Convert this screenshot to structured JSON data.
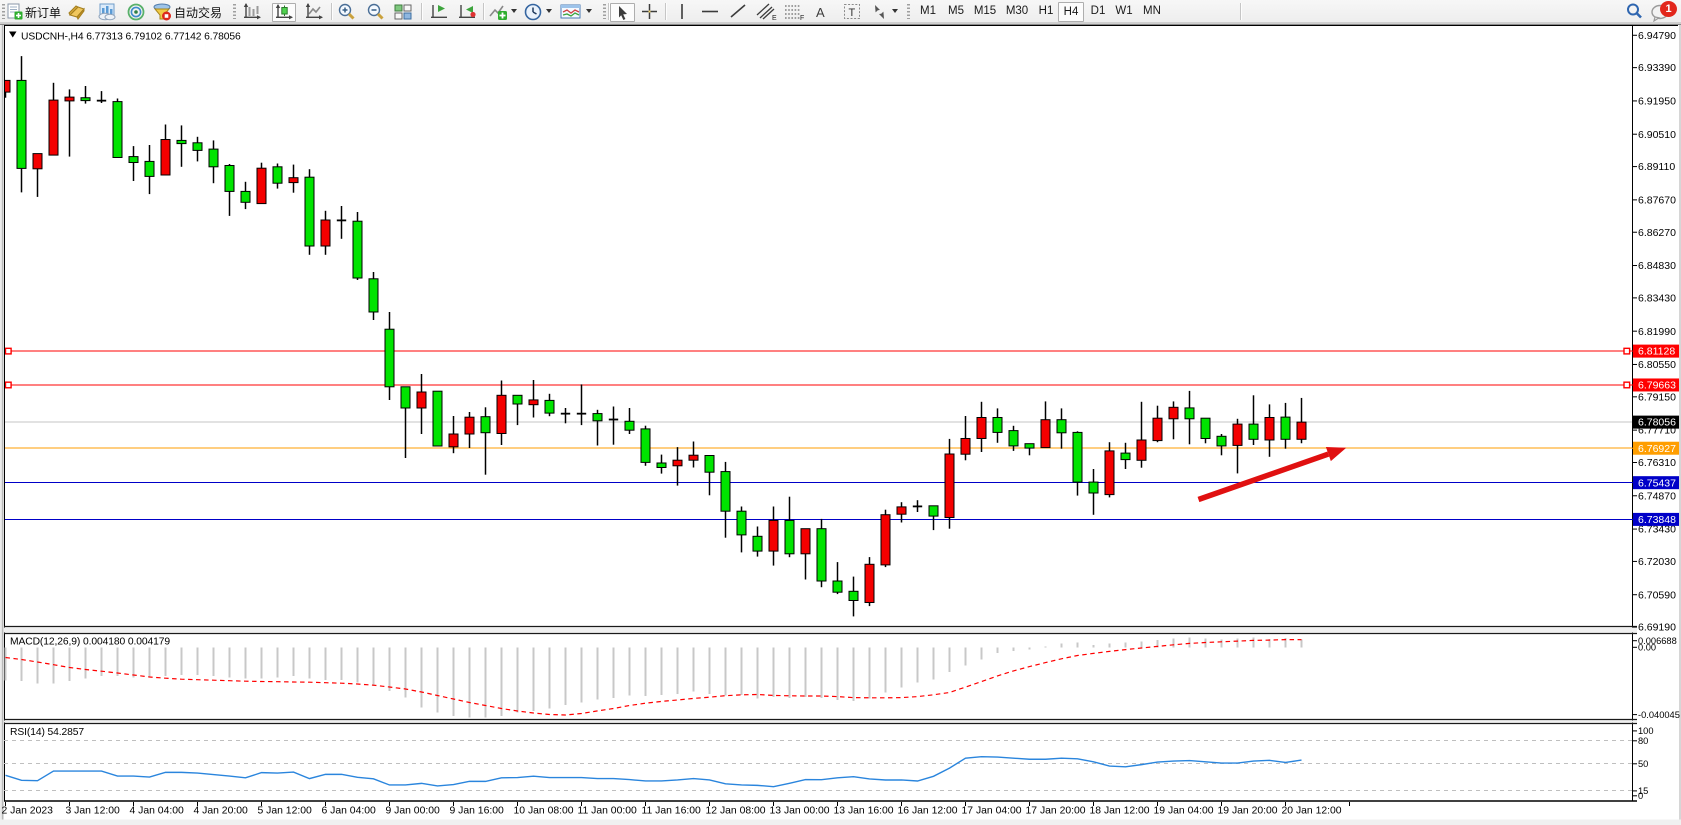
{
  "toolbar": {
    "new_order_label": "新订单",
    "autotrading_label": "自动交易",
    "periods": [
      "M1",
      "M5",
      "M15",
      "M30",
      "H1",
      "H4",
      "D1",
      "W1",
      "MN"
    ],
    "active_period": "H4",
    "chat_badge": "1"
  },
  "title": {
    "symbol_period": "USDCNH-,H4",
    "open": "6.77313",
    "high": "6.79102",
    "low": "6.77142",
    "close": "6.78056"
  },
  "indicator_labels": {
    "macd": "MACD(12,26,9)",
    "macd_value": "0.004180",
    "macd_signal": "0.004179",
    "rsi": "RSI(14)",
    "rsi_value": "54.2857"
  },
  "chart_data": {
    "type": "candlestick",
    "symbol": "USDCNH-",
    "timeframe": "H4",
    "title": "USDCNH-,H4  6.77313 6.79102 6.77142 6.78056",
    "up_color": "#F40000",
    "down_color": "#00E400",
    "ylim": [
      6.69186,
      6.9515
    ],
    "candles": [
      [
        6.92332,
        6.92838,
        6.92089,
        6.92838
      ],
      [
        6.92838,
        6.93889,
        6.87993,
        6.89031
      ],
      [
        6.89014,
        6.89671,
        6.87798,
        6.89671
      ],
      [
        6.89607,
        6.92734,
        6.89607,
        6.91986
      ],
      [
        6.91951,
        6.92449,
        6.89542,
        6.92115
      ],
      [
        6.92089,
        6.92596,
        6.91834,
        6.91964
      ],
      [
        6.91962,
        6.92375,
        6.9186,
        6.91962
      ],
      [
        6.91921,
        6.92055,
        6.89503,
        6.89503
      ],
      [
        6.89542,
        6.89996,
        6.88486,
        6.89286
      ],
      [
        6.89334,
        6.90043,
        6.8792,
        6.88685
      ],
      [
        6.88746,
        6.9093,
        6.88746,
        6.90281
      ],
      [
        6.90242,
        6.90891,
        6.891,
        6.90104
      ],
      [
        6.90139,
        6.90398,
        6.89334,
        6.8981
      ],
      [
        6.89866,
        6.90242,
        6.88391,
        6.891
      ],
      [
        6.89157,
        6.89222,
        6.86977,
        6.88036
      ],
      [
        6.88036,
        6.88452,
        6.87271,
        6.87565
      ],
      [
        6.87509,
        6.89278,
        6.87509,
        6.8904
      ],
      [
        6.891,
        6.89243,
        6.88157,
        6.88391
      ],
      [
        6.88417,
        6.89196,
        6.8798,
        6.88629
      ],
      [
        6.88651,
        6.88997,
        6.85294,
        6.85674
      ],
      [
        6.85674,
        6.87197,
        6.85294,
        6.86799
      ],
      [
        6.86782,
        6.87405,
        6.85986,
        6.86782
      ],
      [
        6.86747,
        6.87145,
        6.84204,
        6.8429
      ],
      [
        6.84256,
        6.8455,
        6.82473,
        6.8282
      ],
      [
        6.82075,
        6.8282,
        6.79013,
        6.79584
      ],
      [
        6.79584,
        6.79584,
        6.76504,
        6.78667
      ],
      [
        6.78667,
        6.80138,
        6.77542,
        6.79359
      ],
      [
        6.79394,
        6.79394,
        6.77023,
        6.77023
      ],
      [
        6.76988,
        6.78321,
        6.76712,
        6.77542
      ],
      [
        6.77542,
        6.78494,
        6.76937,
        6.78269
      ],
      [
        6.78291,
        6.78697,
        6.75782,
        6.77598
      ],
      [
        6.77564,
        6.79856,
        6.77066,
        6.79216
      ],
      [
        6.79216,
        6.79216,
        6.77927,
        6.7884
      ],
      [
        6.7881,
        6.79878,
        6.78256,
        6.79017
      ],
      [
        6.78996,
        6.79281,
        6.78312,
        6.78446
      ],
      [
        6.78422,
        6.78667,
        6.78005,
        6.78422
      ],
      [
        6.78422,
        6.79688,
        6.77927,
        6.78422
      ],
      [
        6.78425,
        6.78589,
        6.77045,
        6.78113
      ],
      [
        6.78169,
        6.78732,
        6.77079,
        6.78169
      ],
      [
        6.78092,
        6.78667,
        6.77542,
        6.77707
      ],
      [
        6.77763,
        6.77901,
        6.76167,
        6.76314
      ],
      [
        6.76288,
        6.76651,
        6.75829,
        6.76093
      ],
      [
        6.76167,
        6.76975,
        6.7531,
        6.76409
      ],
      [
        6.76409,
        6.77218,
        6.76093,
        6.76625
      ],
      [
        6.76612,
        6.76612,
        6.74891,
        6.7589
      ],
      [
        6.75916,
        6.76335,
        6.73056,
        6.74203
      ],
      [
        6.74203,
        6.74406,
        6.72421,
        6.73178
      ],
      [
        6.73117,
        6.73541,
        6.72239,
        6.72477
      ],
      [
        6.72477,
        6.74406,
        6.7185,
        6.73805
      ],
      [
        6.73805,
        6.7483,
        6.72213,
        6.7236
      ],
      [
        6.7236,
        6.73446,
        6.71248,
        6.73446
      ],
      [
        6.73446,
        6.7387,
        6.70915,
        6.71183
      ],
      [
        6.71183,
        6.72001,
        6.70617,
        6.70699
      ],
      [
        6.70738,
        6.71374,
        6.69652,
        6.7034
      ],
      [
        6.70253,
        6.72217,
        6.70098,
        6.71906
      ],
      [
        6.7188,
        6.74268,
        6.71785,
        6.74051
      ],
      [
        6.74073,
        6.74592,
        6.73714,
        6.74389
      ],
      [
        6.7441,
        6.74679,
        6.74168,
        6.7441
      ],
      [
        6.74436,
        6.74436,
        6.73385,
        6.73991
      ],
      [
        6.7393,
        6.7733,
        6.73446,
        6.76677
      ],
      [
        6.76668,
        6.78321,
        6.76405,
        6.77348
      ],
      [
        6.77348,
        6.78935,
        6.76764,
        6.78256
      ],
      [
        6.78256,
        6.7865,
        6.77162,
        6.77611
      ],
      [
        6.77689,
        6.77897,
        6.76811,
        6.77027
      ],
      [
        6.77123,
        6.77123,
        6.76621,
        6.76932
      ],
      [
        6.76954,
        6.78952,
        6.76954,
        6.78161
      ],
      [
        6.78161,
        6.7865,
        6.76906,
        6.77594
      ],
      [
        6.77611,
        6.77659,
        6.74878,
        6.75462
      ],
      [
        6.75462,
        6.76028,
        6.74047,
        6.7499
      ],
      [
        6.74921,
        6.77187,
        6.748,
        6.76811
      ],
      [
        6.76716,
        6.77162,
        6.76028,
        6.76435
      ],
      [
        6.76405,
        6.78935,
        6.76084,
        6.77283
      ],
      [
        6.77257,
        6.78766,
        6.77187,
        6.78226
      ],
      [
        6.782,
        6.78952,
        6.77313,
        6.78697
      ],
      [
        6.78671,
        6.79407,
        6.77097,
        6.782
      ],
      [
        6.78226,
        6.78226,
        6.7714,
        6.77348
      ],
      [
        6.77443,
        6.77542,
        6.76621,
        6.77027
      ],
      [
        6.77049,
        6.782,
        6.75838,
        6.7797
      ],
      [
        6.7797,
        6.79216,
        6.77066,
        6.77313
      ],
      [
        6.77283,
        6.78823,
        6.76556,
        6.78256
      ],
      [
        6.78273,
        6.78887,
        6.76906,
        6.77313
      ],
      [
        6.77313,
        6.79102,
        6.77142,
        6.78056
      ]
    ],
    "time_labels": [
      {
        "bar": 0,
        "text": "2 Jan 2023"
      },
      {
        "bar": 4,
        "text": "3 Jan 12:00"
      },
      {
        "bar": 8,
        "text": "4 Jan 04:00"
      },
      {
        "bar": 12,
        "text": "4 Jan 20:00"
      },
      {
        "bar": 16,
        "text": "5 Jan 12:00"
      },
      {
        "bar": 20,
        "text": "6 Jan 04:00"
      },
      {
        "bar": 24,
        "text": "9 Jan 00:00"
      },
      {
        "bar": 28,
        "text": "9 Jan 16:00"
      },
      {
        "bar": 32,
        "text": "10 Jan 08:00"
      },
      {
        "bar": 36,
        "text": "11 Jan 00:00"
      },
      {
        "bar": 40,
        "text": "11 Jan 16:00"
      },
      {
        "bar": 44,
        "text": "12 Jan 08:00"
      },
      {
        "bar": 48,
        "text": "13 Jan 00:00"
      },
      {
        "bar": 52,
        "text": "13 Jan 16:00"
      },
      {
        "bar": 56,
        "text": "16 Jan 12:00"
      },
      {
        "bar": 60,
        "text": "17 Jan 04:00"
      },
      {
        "bar": 64,
        "text": "17 Jan 20:00"
      },
      {
        "bar": 68,
        "text": "18 Jan 12:00"
      },
      {
        "bar": 72,
        "text": "19 Jan 04:00"
      },
      {
        "bar": 76,
        "text": "19 Jan 20:00"
      },
      {
        "bar": 80,
        "text": "20 Jan 12:00"
      }
    ],
    "price_tick_labels": [
      "6.94790",
      "6.93390",
      "6.91950",
      "6.90510",
      "6.89110",
      "6.87670",
      "6.86270",
      "6.84830",
      "6.83430",
      "6.81990",
      "6.80550",
      "6.79150",
      "6.77710",
      "6.76310",
      "6.74870",
      "6.73430",
      "6.72030",
      "6.70590",
      "6.69190"
    ],
    "hlines": [
      {
        "price": 6.81128,
        "color": "#FF0000",
        "label": "6.81128",
        "selected": true
      },
      {
        "price": 6.79663,
        "color": "#FF0000",
        "label": "6.79663",
        "selected": true
      },
      {
        "price": 6.76927,
        "color": "#FF9E00",
        "label": "6.76927",
        "selected": false
      },
      {
        "price": 6.75437,
        "color": "#0000C8",
        "label": "6.75437",
        "selected": false
      },
      {
        "price": 6.73848,
        "color": "#0000C8",
        "label": "6.73848",
        "selected": false
      }
    ],
    "bid_line": {
      "price": 6.78056,
      "label": "6.78056"
    },
    "trend_arrow": {
      "from_bar": 74.56,
      "from_price": 6.74708,
      "to_bar": 83.8,
      "to_price": 6.76945,
      "color": "#E01010"
    },
    "macd": {
      "name": "MACD(12,26,9)",
      "histogram": [
        -0.01832,
        -0.018594,
        -0.019965,
        -0.019965,
        -0.018594,
        -0.017223,
        -0.015852,
        -0.015852,
        -0.016565,
        -0.016565,
        -0.015852,
        -0.015193,
        -0.015193,
        -0.015852,
        -0.016565,
        -0.017223,
        -0.017223,
        -0.016565,
        -0.015852,
        -0.017223,
        -0.017936,
        -0.017936,
        -0.019307,
        -0.021337,
        -0.024079,
        -0.027535,
        -0.03302,
        -0.035762,
        -0.037792,
        -0.038505,
        -0.038505,
        -0.037792,
        -0.035762,
        -0.035049,
        -0.033678,
        -0.031648,
        -0.030332,
        -0.028687,
        -0.027809,
        -0.026383,
        -0.026712,
        -0.026054,
        -0.025725,
        -0.024134,
        -0.025725,
        -0.026383,
        -0.026054,
        -0.028028,
        -0.02737,
        -0.027699,
        -0.02737,
        -0.027699,
        -0.029016,
        -0.029345,
        -0.028028,
        -0.024792,
        -0.022159,
        -0.019198,
        -0.017607,
        -0.013658,
        -0.010092,
        -0.006801,
        -0.003236,
        -0.00192,
        -0.001097,
        0.000494,
        0.002084,
        0.002578,
        0.001316,
        0.002084,
        0.002578,
        0.003181,
        0.004004,
        0.004882,
        0.00532,
        0.004717,
        0.004388,
        0.004882,
        0.00532,
        0.004607,
        0.005211,
        0.00418
      ],
      "signal": [
        -0.005595,
        -0.006692,
        -0.008063,
        -0.009544,
        -0.01108,
        -0.012177,
        -0.013109,
        -0.014096,
        -0.015193,
        -0.01629,
        -0.016949,
        -0.017497,
        -0.017771,
        -0.018046,
        -0.01832,
        -0.018594,
        -0.018759,
        -0.018868,
        -0.019033,
        -0.019143,
        -0.019417,
        -0.019691,
        -0.02013,
        -0.020788,
        -0.021775,
        -0.022872,
        -0.024518,
        -0.026438,
        -0.028357,
        -0.030277,
        -0.031923,
        -0.033568,
        -0.034939,
        -0.036036,
        -0.036859,
        -0.037133,
        -0.036311,
        -0.034885,
        -0.033568,
        -0.031923,
        -0.030661,
        -0.029674,
        -0.028906,
        -0.028028,
        -0.02737,
        -0.026547,
        -0.026054,
        -0.025889,
        -0.026383,
        -0.026602,
        -0.026712,
        -0.026712,
        -0.027041,
        -0.02759,
        -0.027699,
        -0.027699,
        -0.02759,
        -0.027041,
        -0.026054,
        -0.024792,
        -0.02183,
        -0.018814,
        -0.015687,
        -0.012945,
        -0.010586,
        -0.008392,
        -0.006308,
        -0.004498,
        -0.003346,
        -0.002249,
        -0.001262,
        -0.000384,
        0.000494,
        0.001371,
        0.002139,
        0.002633,
        0.003017,
        0.003401,
        0.003785,
        0.003949,
        0.004223,
        0.004179
      ],
      "ylim": [
        -0.040045,
        0.006688
      ],
      "axis_labels": [
        "0.006688",
        "0.00",
        "-0.040045"
      ]
    },
    "rsi": {
      "name": "RSI(14)",
      "values": [
        34.5,
        28.0,
        27.5,
        40.0,
        40.0,
        40.0,
        40.0,
        33.5,
        33.5,
        32.2,
        38.3,
        38.3,
        37.4,
        35.4,
        33.5,
        31.2,
        38.0,
        37.4,
        38.7,
        30.2,
        35.7,
        35.8,
        31.9,
        29.9,
        21.9,
        21.9,
        24.0,
        20.6,
        22.4,
        26.6,
        26.6,
        31.2,
        31.6,
        33.4,
        31.6,
        31.6,
        31.6,
        30.2,
        30.2,
        28.9,
        27.1,
        27.1,
        28.4,
        30.2,
        28.4,
        23.4,
        21.9,
        21.4,
        19.7,
        24.1,
        28.9,
        28.8,
        31.2,
        32.7,
        29.7,
        28.4,
        28.4,
        27.1,
        33.2,
        43.9,
        56.8,
        58.7,
        58.2,
        56.8,
        55.4,
        55.4,
        56.8,
        56.0,
        52.1,
        46.5,
        45.6,
        48.4,
        51.7,
        53.1,
        53.7,
        52.1,
        50.4,
        50.4,
        53.1,
        54.0,
        51.2,
        54.29
      ],
      "levels": [
        80,
        50,
        15
      ],
      "axis_labels": [
        "100",
        "80",
        "50",
        "15",
        "0"
      ]
    }
  }
}
